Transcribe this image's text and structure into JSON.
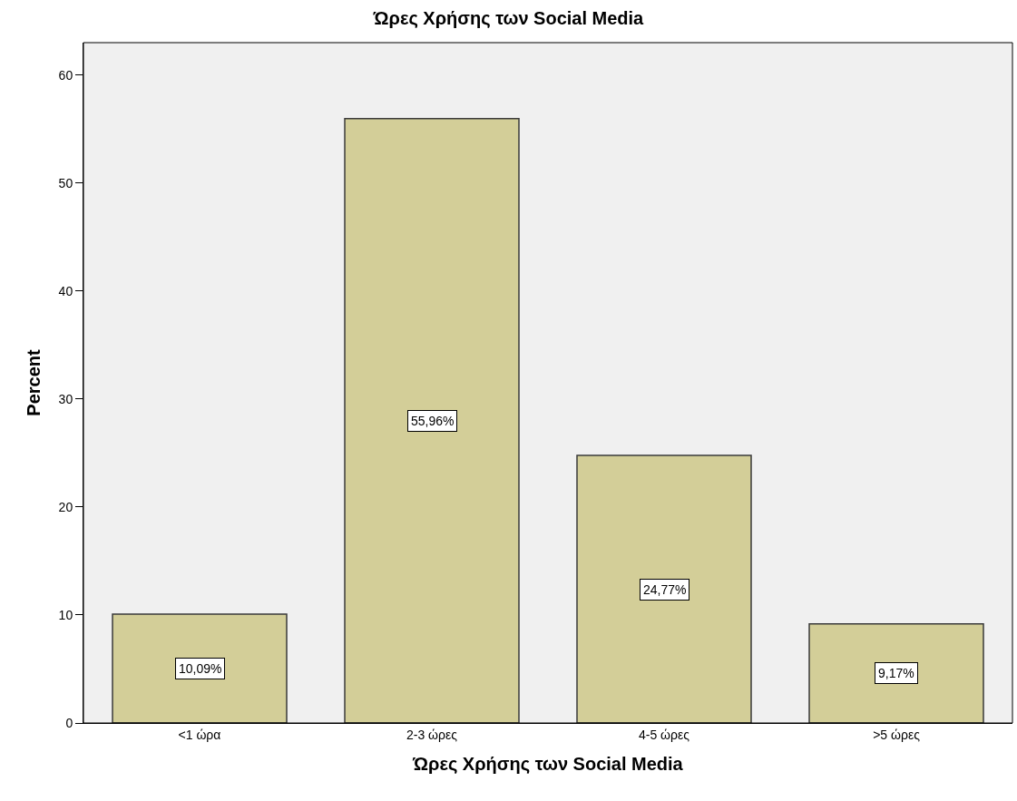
{
  "chart_data": {
    "type": "bar",
    "title": "Ώρες Χρήσης των Social Media",
    "xlabel": "Ώρες Χρήσης των Social Media",
    "ylabel": "Percent",
    "categories": [
      "<1 ώρα",
      "2-3 ώρες",
      "4-5 ώρες",
      ">5 ώρες"
    ],
    "values": [
      10.09,
      55.96,
      24.77,
      9.17
    ],
    "value_labels": [
      "10,09%",
      "55,96%",
      "24,77%",
      "9,17%"
    ],
    "color": "#d3ce98",
    "ylim": [
      0,
      63
    ],
    "yticks": [
      0,
      10,
      20,
      30,
      40,
      50,
      60
    ],
    "grid": false,
    "legend": false
  }
}
